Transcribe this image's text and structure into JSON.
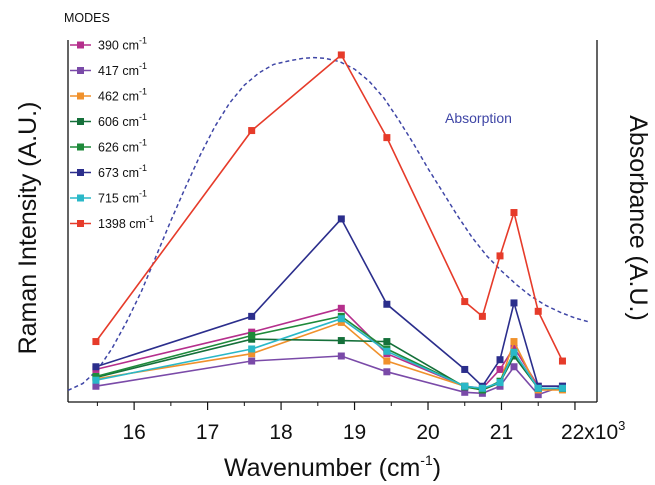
{
  "chart_data": {
    "type": "line",
    "xlim": [
      15.1,
      22.3
    ],
    "ylim": [
      0,
      100
    ],
    "x_ticks": [
      16,
      17,
      18,
      19,
      20,
      21,
      22
    ],
    "x_tick_labels": [
      "16",
      "17",
      "18",
      "19",
      "20",
      "21",
      "22x10"
    ],
    "x_tick_exponent": "3",
    "xlabel": {
      "text": "Wavenumber (cm",
      "sup": "-1",
      "tail": ")"
    },
    "ylabel_left": "Raman Intensity (A.U.)",
    "ylabel_right": "Absorbance (A.U.)",
    "legend": {
      "title": "MODES",
      "placement": "top-left"
    },
    "annotation": {
      "text": "Absorption",
      "color": "#3f46a6"
    },
    "x": [
      15.48,
      17.6,
      18.82,
      19.44,
      20.5,
      20.74,
      20.98,
      21.17,
      21.5,
      21.83
    ],
    "series": [
      {
        "label": "390 cm",
        "sup": "-1",
        "color": "#b52f8c",
        "values": [
          8.2,
          19.3,
          26.4,
          12.9,
          3.2,
          2.6,
          8.2,
          14.8,
          3.2,
          3.2
        ]
      },
      {
        "label": "417 cm",
        "sup": "-1",
        "color": "#7a4aa8",
        "values": [
          3.2,
          10.7,
          12.2,
          7.5,
          1.4,
          1.1,
          3.2,
          9.0,
          0.7,
          3.2
        ]
      },
      {
        "label": "462 cm",
        "sup": "-1",
        "color": "#f0912c",
        "values": [
          5.4,
          12.9,
          22.2,
          10.7,
          3.2,
          2.1,
          4.3,
          16.5,
          2.1,
          2.1
        ]
      },
      {
        "label": "606 cm",
        "sup": "-1",
        "color": "#15703a",
        "values": [
          5.8,
          17.2,
          16.8,
          16.5,
          3.0,
          2.1,
          4.3,
          12.2,
          2.6,
          2.6
        ]
      },
      {
        "label": "626 cm",
        "sup": "-1",
        "color": "#1e8a3a",
        "values": [
          6.1,
          18.3,
          24.0,
          14.3,
          3.2,
          2.1,
          4.7,
          13.3,
          2.6,
          2.6
        ]
      },
      {
        "label": "673 cm",
        "sup": "-1",
        "color": "#2b2e8c",
        "values": [
          9.0,
          24.0,
          53.0,
          27.6,
          8.2,
          3.2,
          11.1,
          28.0,
          3.2,
          3.2
        ]
      },
      {
        "label": "715 cm",
        "sup": "-1",
        "color": "#2ab8c8",
        "values": [
          5.0,
          14.3,
          23.3,
          13.6,
          3.2,
          2.6,
          4.3,
          13.3,
          2.6,
          2.6
        ]
      },
      {
        "label": "1398 cm",
        "sup": "-1",
        "color": "#e63b2a",
        "values": [
          16.5,
          79.3,
          101.8,
          77.2,
          28.4,
          24.0,
          42.0,
          54.9,
          25.5,
          10.7
        ]
      }
    ],
    "absorption_curve": {
      "color": "#3f46a6",
      "x": [
        15.1,
        15.3,
        15.5,
        15.7,
        15.9,
        16.1,
        16.3,
        16.5,
        16.7,
        16.9,
        17.1,
        17.3,
        17.5,
        17.7,
        17.9,
        18.1,
        18.3,
        18.45,
        18.6,
        18.8,
        19.0,
        19.2,
        19.4,
        19.6,
        19.8,
        20.0,
        20.2,
        20.4,
        20.6,
        20.8,
        21.0,
        21.2,
        21.4,
        21.6,
        21.8,
        22.0,
        22.2
      ],
      "values": [
        2.0,
        4.0,
        8.0,
        14.5,
        22.5,
        31.5,
        42.0,
        52.5,
        62.5,
        72.0,
        80.5,
        87.5,
        92.8,
        96.5,
        99.0,
        100.0,
        100.8,
        101.0,
        100.8,
        99.8,
        97.6,
        94.0,
        89.0,
        82.5,
        75.5,
        68.0,
        61.0,
        54.0,
        47.5,
        42.0,
        37.5,
        33.5,
        30.0,
        27.3,
        25.2,
        23.5,
        22.3
      ]
    }
  }
}
